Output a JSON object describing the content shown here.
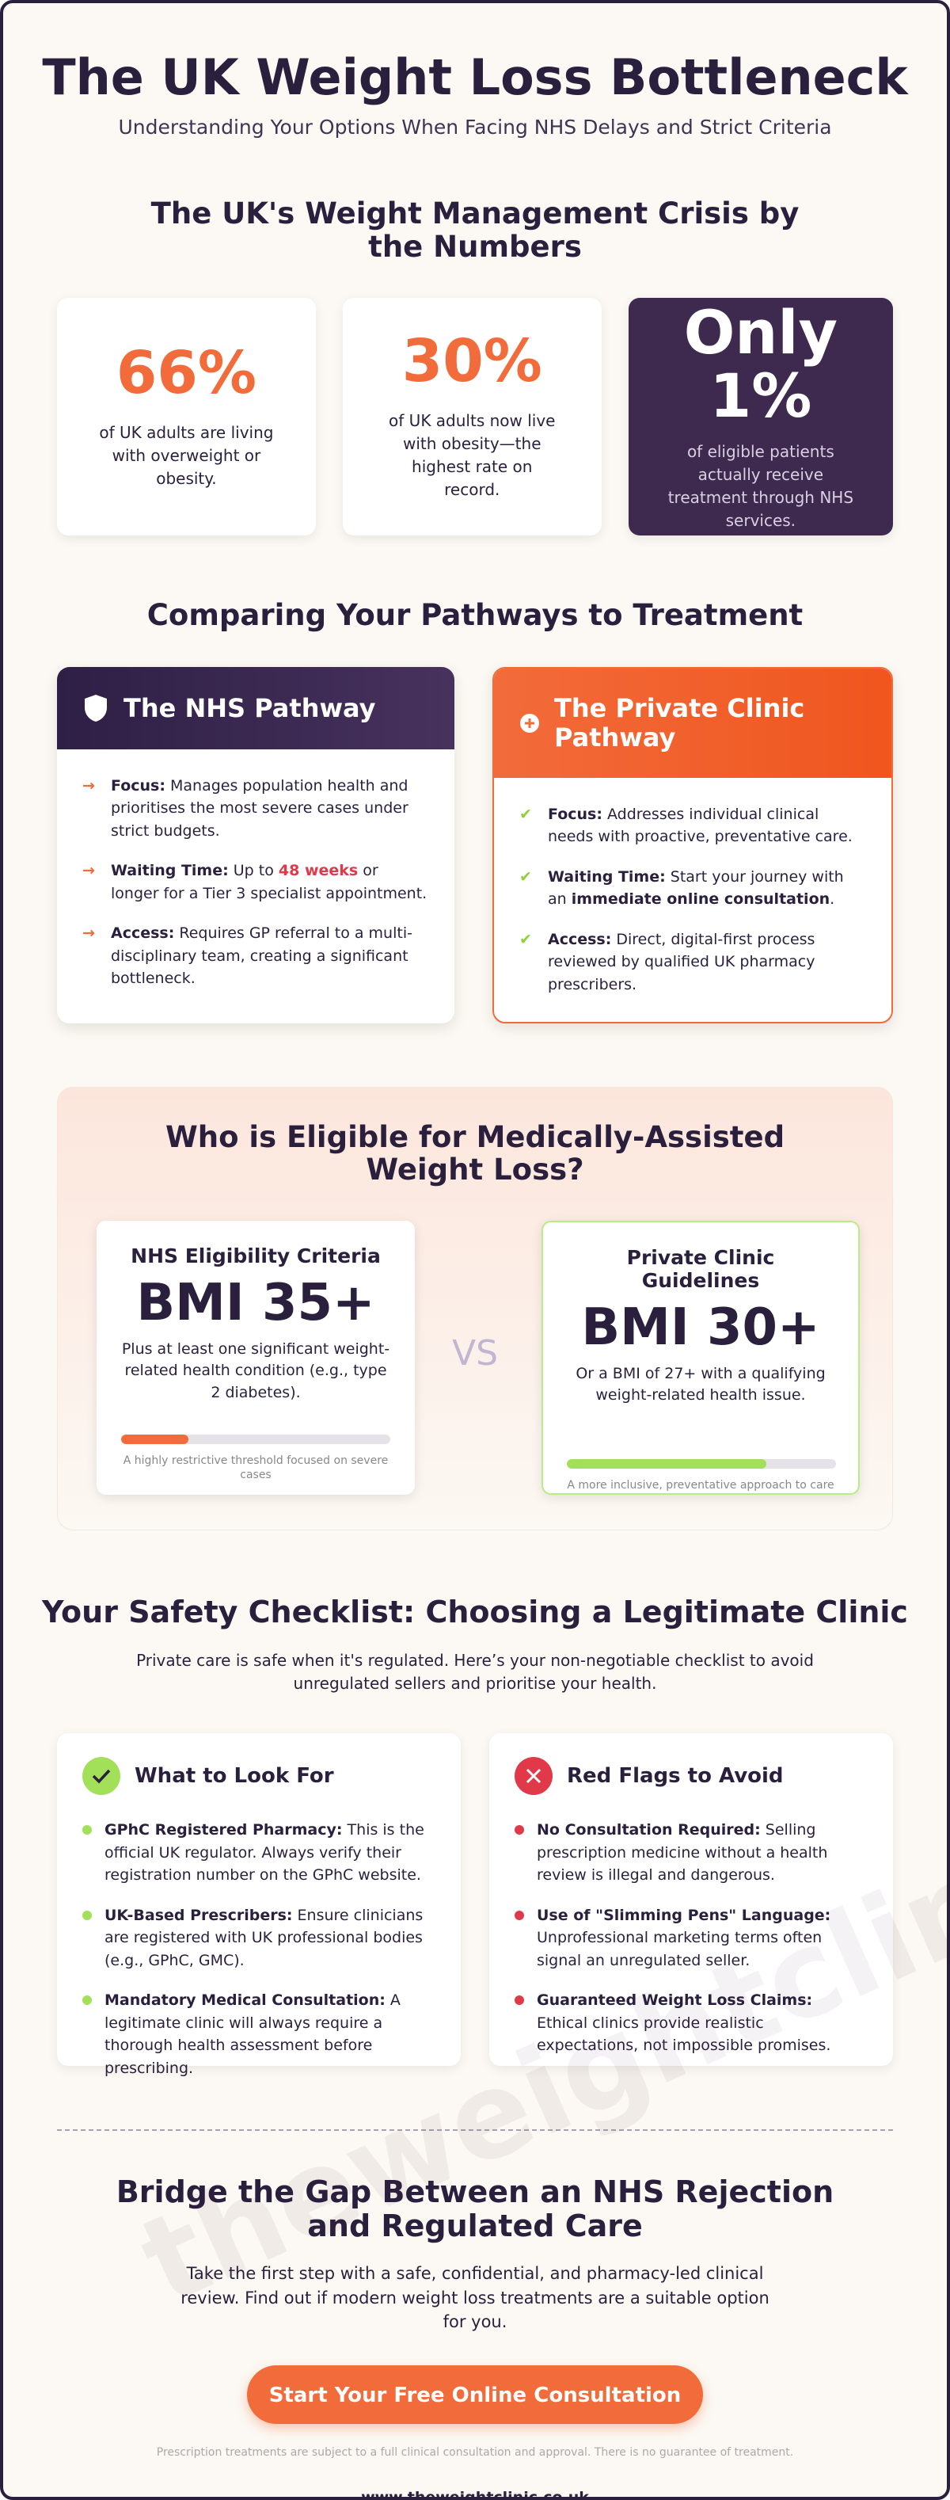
{
  "header": {
    "title": "The UK Weight Loss Bottleneck",
    "subtitle": "Understanding Your Options When Facing NHS Delays and Strict Criteria"
  },
  "stats": {
    "heading": "The UK's Weight Management Crisis by the Numbers",
    "cards": [
      {
        "value": "66%",
        "text": "of UK adults are living with overweight or obesity."
      },
      {
        "value": "30%",
        "text": "of UK adults now live with obesity—the highest rate on record."
      },
      {
        "value": "Only 1%",
        "text": "of eligible patients actually receive treatment through NHS services."
      }
    ]
  },
  "pathways": {
    "heading": "Comparing Your Pathways to Treatment",
    "nhs": {
      "title": "The NHS Pathway",
      "items": [
        {
          "label": "Focus:",
          "parts": [
            " Manages population health and prioritises the most severe cases under strict budgets."
          ]
        },
        {
          "label": "Waiting Time:",
          "parts": [
            " Up to ",
            "48 weeks",
            " or longer for a Tier 3 specialist appointment."
          ]
        },
        {
          "label": "Access:",
          "parts": [
            " Requires GP referral to a multi-disciplinary team, creating a significant bottleneck."
          ]
        }
      ]
    },
    "private": {
      "title": "The Private Clinic Pathway",
      "items": [
        {
          "label": "Focus:",
          "parts": [
            " Addresses individual clinical needs with proactive, preventative care."
          ]
        },
        {
          "label": "Waiting Time:",
          "parts": [
            " Start your journey with an ",
            "immediate online consultation",
            "."
          ]
        },
        {
          "label": "Access:",
          "parts": [
            " Direct, digital-first process reviewed by qualified UK pharmacy prescribers."
          ]
        }
      ]
    }
  },
  "eligibility": {
    "heading": "Who is Eligible for Medically-Assisted Weight Loss?",
    "vs": "VS",
    "nhs": {
      "title": "NHS Eligibility Criteria",
      "value": "BMI 35+",
      "text": "Plus at least one significant weight-related health condition (e.g., type 2 diabetes).",
      "note": "A highly restrictive threshold focused on severe cases"
    },
    "private": {
      "title": "Private Clinic Guidelines",
      "value": "BMI 30+",
      "text": "Or a BMI of 27+ with a qualifying weight-related health issue.",
      "note": "A more inclusive, preventative approach to care"
    }
  },
  "safety": {
    "heading": "Your Safety Checklist: Choosing a Legitimate Clinic",
    "intro": "Private care is safe when it's regulated. Here’s your non-negotiable checklist to avoid unregulated sellers and prioritise your health.",
    "look_for": {
      "title": "What to Look For",
      "items": [
        {
          "label": "GPhC Registered Pharmacy:",
          "text": " This is the official UK regulator. Always verify their registration number on the GPhC website."
        },
        {
          "label": "UK-Based Prescribers:",
          "text": " Ensure clinicians are registered with UK professional bodies (e.g., GPhC, GMC)."
        },
        {
          "label": "Mandatory Medical Consultation:",
          "text": " A legitimate clinic will always require a thorough health assessment before prescribing."
        }
      ]
    },
    "red_flags": {
      "title": "Red Flags to Avoid",
      "items": [
        {
          "label": "No Consultation Required:",
          "text": " Selling prescription medicine without a health review is illegal and dangerous."
        },
        {
          "label": "Use of \"Slimming Pens\" Language:",
          "text": " Unprofessional marketing terms often signal an unregulated seller."
        },
        {
          "label": "Guaranteed Weight Loss Claims:",
          "text": " Ethical clinics provide realistic expectations, not impossible promises."
        }
      ]
    }
  },
  "cta": {
    "heading": "Bridge the Gap Between an NHS Rejection and Regulated Care",
    "text": "Take the first step with a safe, confidential, and pharmacy-led clinical review. Find out if modern weight loss treatments are a suitable option for you.",
    "button": "Start Your Free Online Consultation",
    "disclaimer": "Prescription treatments are subject to a full clinical consultation and approval. There is no guarantee of treatment.",
    "url": "www.theweightclinic.co.uk",
    "watermark": "theweightclinic.co.uk"
  }
}
